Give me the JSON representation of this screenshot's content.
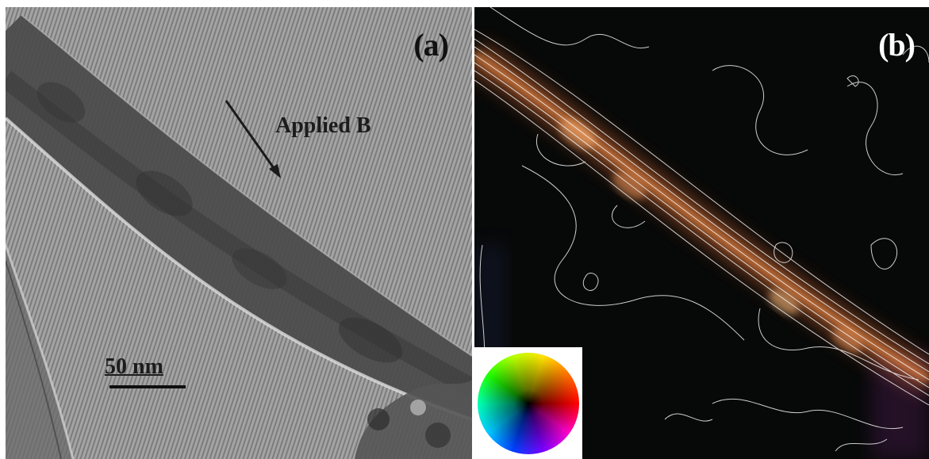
{
  "panel_a": {
    "label": "(a)",
    "annotation": "Applied B",
    "scale_bar_label": "50 nm"
  },
  "panel_b": {
    "label": "(b)",
    "legend_icon": "color-wheel-icon"
  },
  "colors": {
    "background": "#ffffff",
    "panel_a_background": "#9a9a9a",
    "panel_a_text": "#111111",
    "panel_b_background": "#070808",
    "panel_b_label": "#ffffff",
    "contour_lines": "#e8e8e8",
    "nanowire_glow": "#ff8c3a"
  }
}
